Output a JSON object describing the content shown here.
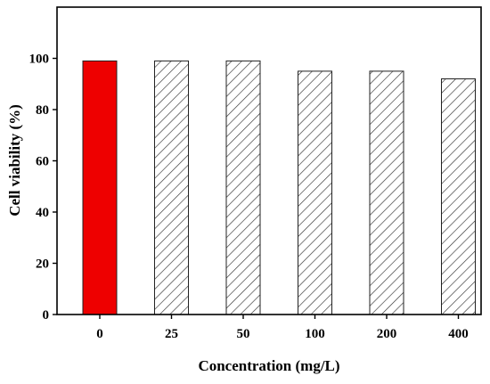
{
  "chart_data": {
    "type": "bar",
    "title": "",
    "xlabel": "Concentration (mg/L)",
    "ylabel": "Cell viability (%)",
    "categories": [
      "0",
      "25",
      "50",
      "100",
      "200",
      "400"
    ],
    "values": [
      99,
      99,
      99,
      95,
      95,
      92
    ],
    "ylim": [
      0,
      120
    ],
    "yticks": [
      "0",
      "20",
      "40",
      "60",
      "80",
      "100"
    ],
    "grid": false,
    "legend": "none",
    "colors": {
      "control_fill": "#ee0000",
      "control_label": "#e8332e",
      "treated_fill": "#ffffff",
      "hatch": "#333333",
      "axis": "#000000"
    }
  }
}
